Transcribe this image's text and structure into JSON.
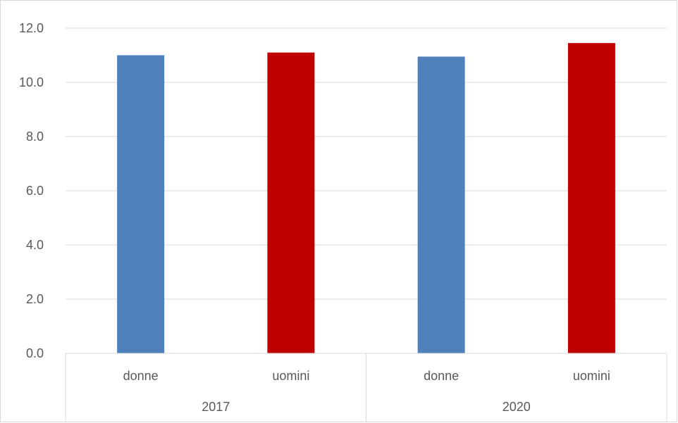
{
  "chart_data": {
    "type": "bar",
    "title": "",
    "xlabel": "",
    "ylabel": "",
    "ylim": [
      0,
      12
    ],
    "y_ticks": [
      "0.0",
      "2.0",
      "4.0",
      "6.0",
      "8.0",
      "10.0",
      "12.0"
    ],
    "grid": true,
    "legend": "none",
    "groups": [
      "2017",
      "2020"
    ],
    "bars": [
      {
        "group": "2017",
        "category": "donne",
        "value": 11.0,
        "color": "#4f81bd"
      },
      {
        "group": "2017",
        "category": "uomini",
        "value": 11.1,
        "color": "#c00000"
      },
      {
        "group": "2020",
        "category": "donne",
        "value": 10.95,
        "color": "#4f81bd"
      },
      {
        "group": "2020",
        "category": "uomini",
        "value": 11.45,
        "color": "#c00000"
      }
    ]
  }
}
